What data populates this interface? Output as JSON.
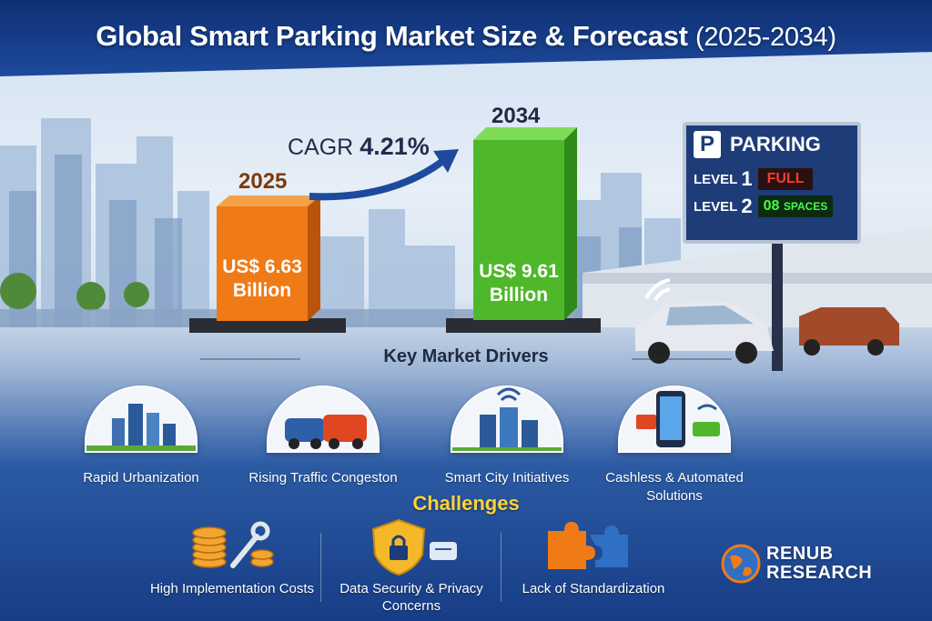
{
  "title": {
    "main": "Global Smart Parking Market Size & Forecast",
    "years": "(2025-2034)"
  },
  "bars": [
    {
      "year": "2025",
      "value_label": "US$ 6.63",
      "unit": "Billion",
      "value": 6.63,
      "color": "#f07a16"
    },
    {
      "year": "2034",
      "value_label": "US$ 9.61",
      "unit": "Billion",
      "value": 9.61,
      "color": "#4fb82a"
    }
  ],
  "cagr": {
    "label": "CAGR",
    "value": "4.21%"
  },
  "sign": {
    "header": "PARKING",
    "p_letter": "P",
    "rows": [
      {
        "level": "LEVEL",
        "num": "1",
        "status": "FULL"
      },
      {
        "level": "LEVEL",
        "num": "2",
        "count": "08",
        "status": "SPACES"
      }
    ]
  },
  "drivers": {
    "title": "Key Market Drivers",
    "items": [
      {
        "label": "Rapid Urbanization",
        "icon": "city-buildings-icon"
      },
      {
        "label": "Rising Traffic Congeston",
        "icon": "cars-traffic-icon"
      },
      {
        "label": "Smart City Initiatives",
        "icon": "smart-city-icon"
      },
      {
        "label": "Cashless & Automated Solutions",
        "icon": "phone-payment-icon"
      }
    ]
  },
  "challenges": {
    "title": "Challenges",
    "items": [
      {
        "label": "High Implementation Costs",
        "icon": "coins-wrench-icon"
      },
      {
        "label": "Data Security & Privacy Concerns",
        "icon": "shield-lock-icon"
      },
      {
        "label": "Lack of Standardization",
        "icon": "puzzle-icon"
      }
    ]
  },
  "logo": {
    "line1": "RENUB",
    "line2": "RESEARCH"
  },
  "colors": {
    "header": "#1d4a9c",
    "accent_yellow": "#ffd23a",
    "orange_bar": "#f07a16",
    "green_bar": "#4fb82a"
  }
}
